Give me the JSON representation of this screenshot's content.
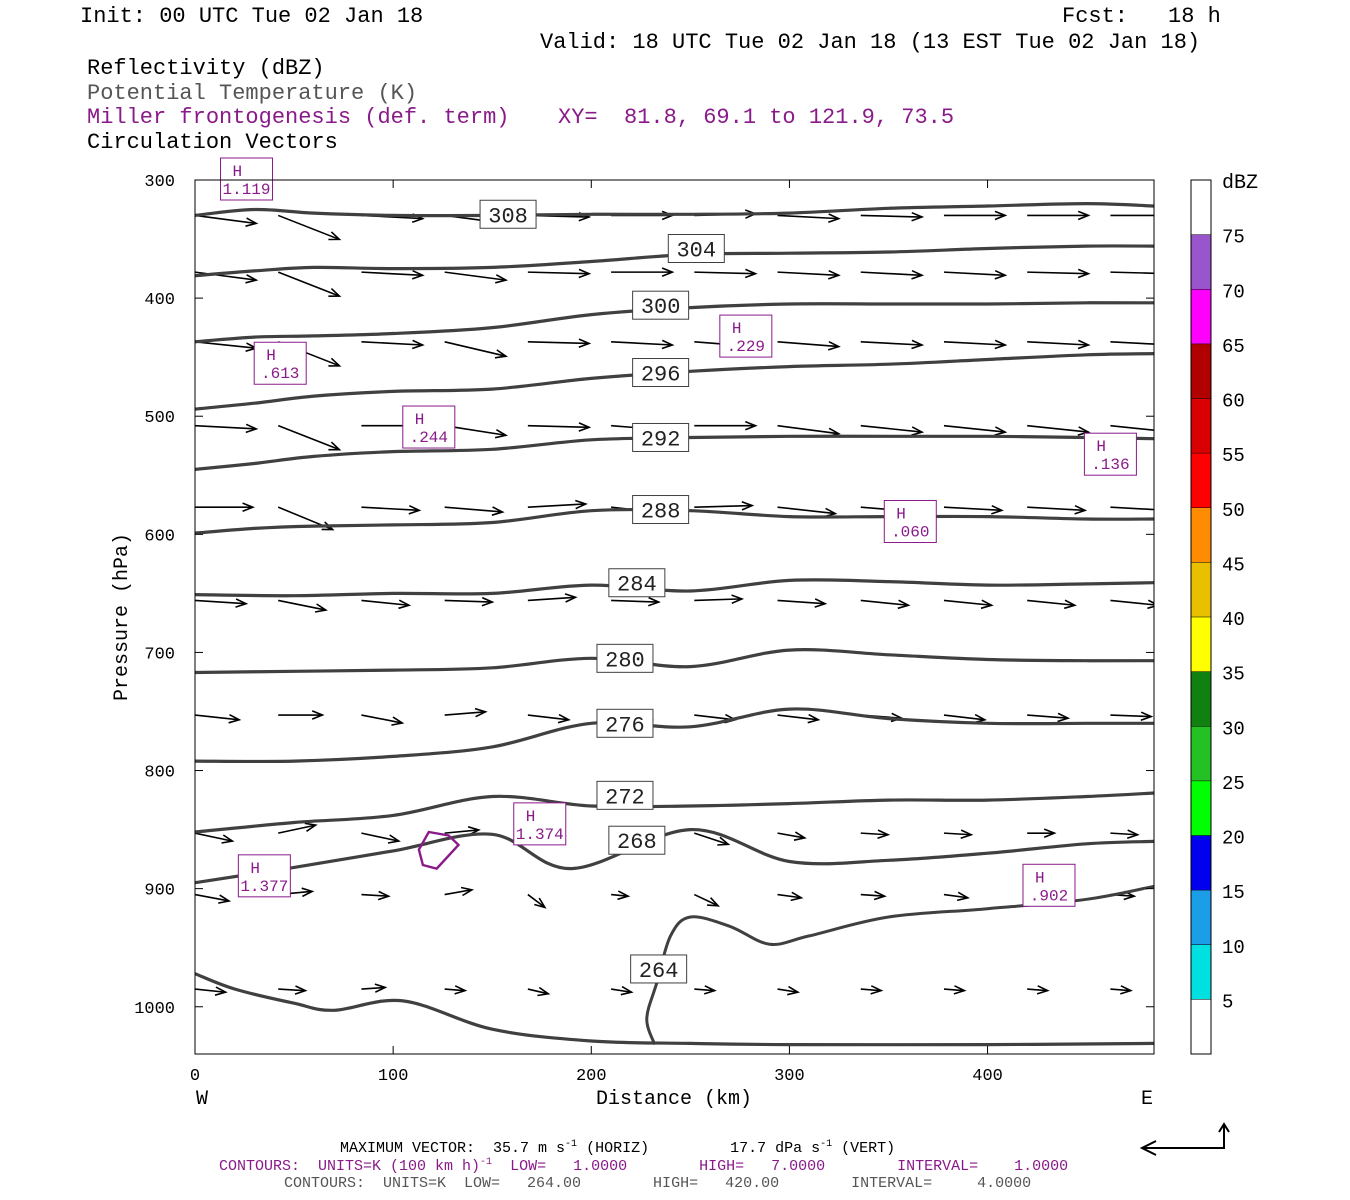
{
  "header": {
    "init": "Init: 00 UTC Tue 02 Jan 18",
    "fcst_label": "Fcst:",
    "fcst_value": "18 h",
    "valid": "Valid: 18 UTC Tue 02 Jan 18 (13 EST Tue 02 Jan 18)",
    "field1": "Reflectivity (dBZ)",
    "field2": "Potential Temperature (K)",
    "field3": "Miller frontogenesis (def. term)",
    "xy": "XY=  81.8, 69.1 to 121.9, 73.5",
    "field4": "Circulation Vectors"
  },
  "colors": {
    "theta": "#404040",
    "fronto": "#8a1a8a",
    "vector": "#000000"
  },
  "chart_data": {
    "type": "line",
    "xlabel": "Distance (km)",
    "ylabel": "Pressure (hPa)",
    "xlim": [
      0,
      484
    ],
    "ylim": [
      1040,
      300
    ],
    "x_ticks": [
      0,
      100,
      200,
      300,
      400
    ],
    "y_ticks": [
      300,
      400,
      500,
      600,
      700,
      800,
      900,
      1000
    ],
    "x_end_labels": {
      "left": "W",
      "right": "E"
    },
    "grid": false,
    "theta_contours": [
      {
        "label": "308",
        "label_at": [
          158,
          329
        ],
        "points": [
          [
            0,
            330
          ],
          [
            30,
            325
          ],
          [
            60,
            328
          ],
          [
            100,
            330
          ],
          [
            150,
            330
          ],
          [
            200,
            329
          ],
          [
            250,
            329
          ],
          [
            300,
            328
          ],
          [
            350,
            324
          ],
          [
            400,
            322
          ],
          [
            450,
            320
          ],
          [
            484,
            322
          ]
        ]
      },
      {
        "label": "304",
        "label_at": [
          253,
          358
        ],
        "points": [
          [
            0,
            381
          ],
          [
            30,
            377
          ],
          [
            60,
            374
          ],
          [
            100,
            375
          ],
          [
            150,
            374
          ],
          [
            200,
            369
          ],
          [
            250,
            363
          ],
          [
            300,
            362
          ],
          [
            350,
            361
          ],
          [
            400,
            358
          ],
          [
            450,
            356
          ],
          [
            484,
            356
          ]
        ]
      },
      {
        "label": "300",
        "label_at": [
          235,
          406
        ],
        "points": [
          [
            0,
            437
          ],
          [
            30,
            433
          ],
          [
            60,
            432
          ],
          [
            100,
            430
          ],
          [
            150,
            425
          ],
          [
            200,
            414
          ],
          [
            250,
            408
          ],
          [
            300,
            405
          ],
          [
            350,
            405
          ],
          [
            400,
            405
          ],
          [
            450,
            404
          ],
          [
            484,
            404
          ]
        ]
      },
      {
        "label": "296",
        "label_at": [
          235,
          463
        ],
        "points": [
          [
            0,
            494
          ],
          [
            30,
            489
          ],
          [
            60,
            483
          ],
          [
            100,
            479
          ],
          [
            150,
            477
          ],
          [
            200,
            468
          ],
          [
            250,
            462
          ],
          [
            300,
            458
          ],
          [
            350,
            456
          ],
          [
            400,
            452
          ],
          [
            450,
            448
          ],
          [
            484,
            447
          ]
        ]
      },
      {
        "label": "292",
        "label_at": [
          235,
          518
        ],
        "points": [
          [
            0,
            545
          ],
          [
            30,
            540
          ],
          [
            60,
            534
          ],
          [
            100,
            530
          ],
          [
            150,
            528
          ],
          [
            200,
            520
          ],
          [
            250,
            518
          ],
          [
            300,
            517
          ],
          [
            350,
            517
          ],
          [
            400,
            517
          ],
          [
            450,
            518
          ],
          [
            484,
            519
          ]
        ]
      },
      {
        "label": "288",
        "label_at": [
          235,
          579
        ],
        "points": [
          [
            0,
            599
          ],
          [
            30,
            595
          ],
          [
            60,
            593
          ],
          [
            100,
            592
          ],
          [
            150,
            590
          ],
          [
            200,
            580
          ],
          [
            250,
            580
          ],
          [
            300,
            585
          ],
          [
            350,
            585
          ],
          [
            400,
            585
          ],
          [
            450,
            587
          ],
          [
            484,
            587
          ]
        ]
      },
      {
        "label": "284",
        "label_at": [
          223,
          641
        ],
        "points": [
          [
            0,
            651
          ],
          [
            50,
            652
          ],
          [
            100,
            650
          ],
          [
            150,
            650
          ],
          [
            200,
            643
          ],
          [
            250,
            648
          ],
          [
            300,
            639
          ],
          [
            350,
            640
          ],
          [
            400,
            643
          ],
          [
            450,
            642
          ],
          [
            484,
            641
          ]
        ]
      },
      {
        "label": "280",
        "label_at": [
          217,
          705
        ],
        "points": [
          [
            0,
            717
          ],
          [
            50,
            716
          ],
          [
            100,
            715
          ],
          [
            150,
            713
          ],
          [
            200,
            705
          ],
          [
            250,
            712
          ],
          [
            300,
            698
          ],
          [
            350,
            702
          ],
          [
            400,
            706
          ],
          [
            450,
            707
          ],
          [
            484,
            707
          ]
        ]
      },
      {
        "label": "276",
        "label_at": [
          217,
          760
        ],
        "points": [
          [
            0,
            792
          ],
          [
            50,
            792
          ],
          [
            100,
            788
          ],
          [
            150,
            780
          ],
          [
            200,
            760
          ],
          [
            250,
            763
          ],
          [
            300,
            748
          ],
          [
            350,
            756
          ],
          [
            400,
            760
          ],
          [
            450,
            760
          ],
          [
            484,
            760
          ]
        ]
      },
      {
        "label": "272",
        "label_at": [
          217,
          821
        ],
        "points": [
          [
            0,
            852
          ],
          [
            50,
            844
          ],
          [
            100,
            838
          ],
          [
            150,
            822
          ],
          [
            200,
            830
          ],
          [
            250,
            830
          ],
          [
            300,
            828
          ],
          [
            350,
            825
          ],
          [
            400,
            825
          ],
          [
            450,
            822
          ],
          [
            484,
            819
          ]
        ]
      },
      {
        "label": "268",
        "label_at": [
          223,
          859
        ],
        "points": [
          [
            0,
            895
          ],
          [
            50,
            882
          ],
          [
            100,
            868
          ],
          [
            150,
            854
          ],
          [
            190,
            883
          ],
          [
            250,
            850
          ],
          [
            300,
            877
          ],
          [
            350,
            876
          ],
          [
            400,
            870
          ],
          [
            450,
            862
          ],
          [
            484,
            860
          ]
        ]
      },
      {
        "label": "264",
        "label_at": [
          234,
          968
        ],
        "points": [
          [
            0,
            972
          ],
          [
            20,
            985
          ],
          [
            50,
            997
          ],
          [
            70,
            1003
          ],
          [
            105,
            995
          ],
          [
            150,
            1019
          ],
          [
            200,
            1029
          ],
          [
            250,
            1031
          ],
          [
            300,
            1032
          ],
          [
            400,
            1032
          ],
          [
            484,
            1031
          ]
        ]
      }
    ],
    "theta_264_branch": [
      [
        232,
        1032
      ],
      [
        228,
        1010
      ],
      [
        233,
        980
      ],
      [
        240,
        940
      ],
      [
        250,
        924
      ],
      [
        270,
        932
      ],
      [
        290,
        947
      ],
      [
        310,
        940
      ],
      [
        350,
        924
      ],
      [
        400,
        917
      ],
      [
        450,
        909
      ],
      [
        484,
        898
      ]
    ],
    "fronto_maxima": [
      {
        "label": "H",
        "value": "1.119",
        "at": [
          26,
          300
        ]
      },
      {
        "label": "H",
        "value": ".613",
        "at": [
          43,
          456
        ]
      },
      {
        "label": "H",
        "value": ".244",
        "at": [
          118,
          510
        ]
      },
      {
        "label": "H",
        "value": ".229",
        "at": [
          278,
          433
        ]
      },
      {
        "label": "H",
        "value": ".136",
        "at": [
          462,
          533
        ]
      },
      {
        "label": "H",
        "value": ".060",
        "at": [
          361,
          590
        ]
      },
      {
        "label": "H",
        "value": "1.374",
        "at": [
          174,
          846
        ]
      },
      {
        "label": "H",
        "value": "1.377",
        "at": [
          35,
          890
        ]
      },
      {
        "label": "H",
        "value": ".902",
        "at": [
          431,
          898
        ]
      }
    ],
    "fronto_contour": [
      [
        118,
        852
      ],
      [
        128,
        855
      ],
      [
        133,
        863
      ],
      [
        122,
        883
      ],
      [
        115,
        880
      ],
      [
        113,
        867
      ]
    ],
    "vector_rows": [
      {
        "p": 330,
        "u": [
          18,
          18,
          18,
          18,
          18,
          18,
          18,
          18,
          18,
          18,
          18,
          18
        ],
        "w": [
          -5,
          -15,
          -2,
          -5,
          -1,
          0,
          1,
          -2,
          -1,
          0,
          0,
          0
        ]
      },
      {
        "p": 378,
        "u": [
          18,
          18,
          18,
          18,
          18,
          18,
          18,
          18,
          18,
          18,
          18,
          18
        ],
        "w": [
          -5,
          -15,
          -2,
          -5,
          -1,
          0,
          -1,
          -2,
          -2,
          -2,
          -1,
          -1
        ]
      },
      {
        "p": 437,
        "u": [
          18,
          18,
          18,
          18,
          18,
          18,
          18,
          18,
          18,
          18,
          18,
          18
        ],
        "w": [
          -4,
          -15,
          -2,
          -9,
          -1,
          -2,
          -3,
          -3,
          -2,
          -2,
          -2,
          -2
        ]
      },
      {
        "p": 508,
        "u": [
          18,
          18,
          18,
          18,
          18,
          18,
          18,
          18,
          18,
          18,
          18,
          18
        ],
        "w": [
          -2,
          -15,
          0,
          -6,
          -1,
          -3,
          0,
          -5,
          -4,
          -4,
          -4,
          -4
        ]
      },
      {
        "p": 577,
        "u": [
          17,
          16,
          17,
          17,
          17,
          17,
          17,
          17,
          17,
          17,
          17,
          17
        ],
        "w": [
          0,
          -14,
          -2,
          -3,
          2,
          -4,
          1,
          -4,
          -3,
          -2,
          -2,
          -2
        ]
      },
      {
        "p": 656,
        "u": [
          15,
          14,
          14,
          14,
          14,
          14,
          14,
          14,
          14,
          14,
          14,
          14
        ],
        "w": [
          -2,
          -6,
          -3,
          -1,
          2,
          -1,
          1,
          -2,
          -3,
          -3,
          -3,
          -3
        ]
      },
      {
        "p": 753,
        "u": [
          13,
          13,
          12,
          12,
          12,
          12,
          12,
          12,
          12,
          12,
          12,
          12
        ],
        "w": [
          -3,
          0,
          -5,
          2,
          -3,
          -3,
          -3,
          -3,
          -2,
          -3,
          -2,
          -1
        ]
      },
      {
        "p": 853,
        "u": [
          11,
          11,
          11,
          10,
          10,
          10,
          10,
          8,
          8,
          8,
          8,
          8
        ],
        "w": [
          -5,
          5,
          -5,
          2,
          -4,
          -1,
          -7,
          -3,
          -1,
          -1,
          0,
          -1
        ]
      },
      {
        "p": 905,
        "u": [
          10,
          10,
          8,
          8,
          5,
          5,
          7,
          7,
          7,
          7,
          7,
          7
        ],
        "w": [
          -4,
          2,
          -1,
          3,
          -8,
          -1,
          -7,
          -2,
          -1,
          -2,
          -1,
          -1
        ]
      },
      {
        "p": 985,
        "u": [
          9,
          8,
          7,
          6,
          6,
          6,
          6,
          6,
          6,
          6,
          6,
          6
        ],
        "w": [
          -2,
          -1,
          1,
          -1,
          -3,
          -2,
          -1,
          -2,
          -1,
          -1,
          -1,
          -1
        ]
      }
    ],
    "reflectivity_colorbar": {
      "units": "dBZ",
      "levels": [
        "5",
        "10",
        "15",
        "20",
        "25",
        "30",
        "35",
        "40",
        "45",
        "50",
        "55",
        "60",
        "65",
        "70",
        "75"
      ],
      "colors": [
        "#00e0e0",
        "#1c9de8",
        "#0000ee",
        "#00ff00",
        "#24c024",
        "#108010",
        "#ffff00",
        "#e8c000",
        "#ff8c00",
        "#ff0000",
        "#d80000",
        "#b00000",
        "#ff00ff",
        "#9955cc",
        "#ffffff"
      ]
    }
  },
  "footer": {
    "max_vector_prefix": "MAXIMUM VECTOR:  35.7 m s",
    "max_vector_sup1": "-1",
    "max_vector_mid": " (HORIZ)         17.7 dPa s",
    "max_vector_sup2": "-1",
    "max_vector_suffix": " (VERT)",
    "contours1_prefix": "CONTOURS:  UNITS=K (100 km h)",
    "contours1_sup": "-1",
    "contours1_suffix": "  LOW=   1.0000        HIGH=   7.0000        INTERVAL=    1.0000",
    "contours2": "CONTOURS:  UNITS=K  LOW=   264.00        HIGH=   420.00        INTERVAL=     4.0000"
  }
}
